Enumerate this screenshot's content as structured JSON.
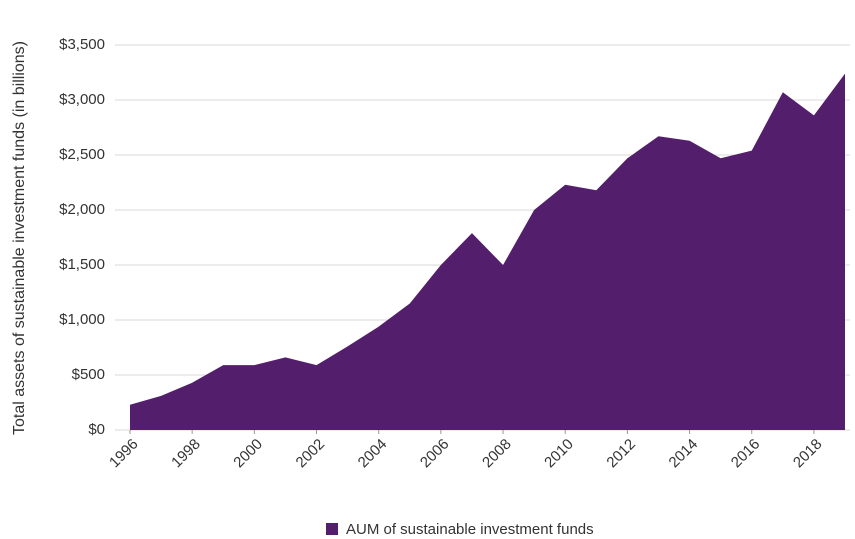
{
  "chart_data": {
    "type": "area",
    "y_label": "Total assets of sustainable investment funds (in billions)",
    "x": [
      1996,
      1997,
      1998,
      1999,
      2000,
      2001,
      2002,
      2003,
      2004,
      2005,
      2006,
      2007,
      2008,
      2009,
      2010,
      2011,
      2012,
      2013,
      2014,
      2015,
      2016,
      2017,
      2018,
      2019
    ],
    "series": [
      {
        "name": "AUM of sustainable investment funds",
        "color": "#531e6b",
        "values": [
          230,
          310,
          430,
          590,
          590,
          660,
          590,
          760,
          940,
          1150,
          1500,
          1790,
          1500,
          2000,
          2230,
          2180,
          2470,
          2670,
          2630,
          2470,
          2540,
          3070,
          2860,
          3240
        ]
      }
    ],
    "xlim": [
      1996,
      2019
    ],
    "xticks": [
      1996,
      1998,
      2000,
      2002,
      2004,
      2006,
      2008,
      2010,
      2012,
      2014,
      2016,
      2018
    ],
    "ylim": [
      0,
      3500
    ],
    "yticks": [
      {
        "value": 0,
        "label": "$0"
      },
      {
        "value": 500,
        "label": "$500"
      },
      {
        "value": 1000,
        "label": "$1,000"
      },
      {
        "value": 1500,
        "label": "$1,500"
      },
      {
        "value": 2000,
        "label": "$2,000"
      },
      {
        "value": 2500,
        "label": "$2,500"
      },
      {
        "value": 3000,
        "label": "$3,000"
      },
      {
        "value": 3500,
        "label": "$3,500"
      }
    ],
    "grid": true,
    "legend": "bottom"
  }
}
